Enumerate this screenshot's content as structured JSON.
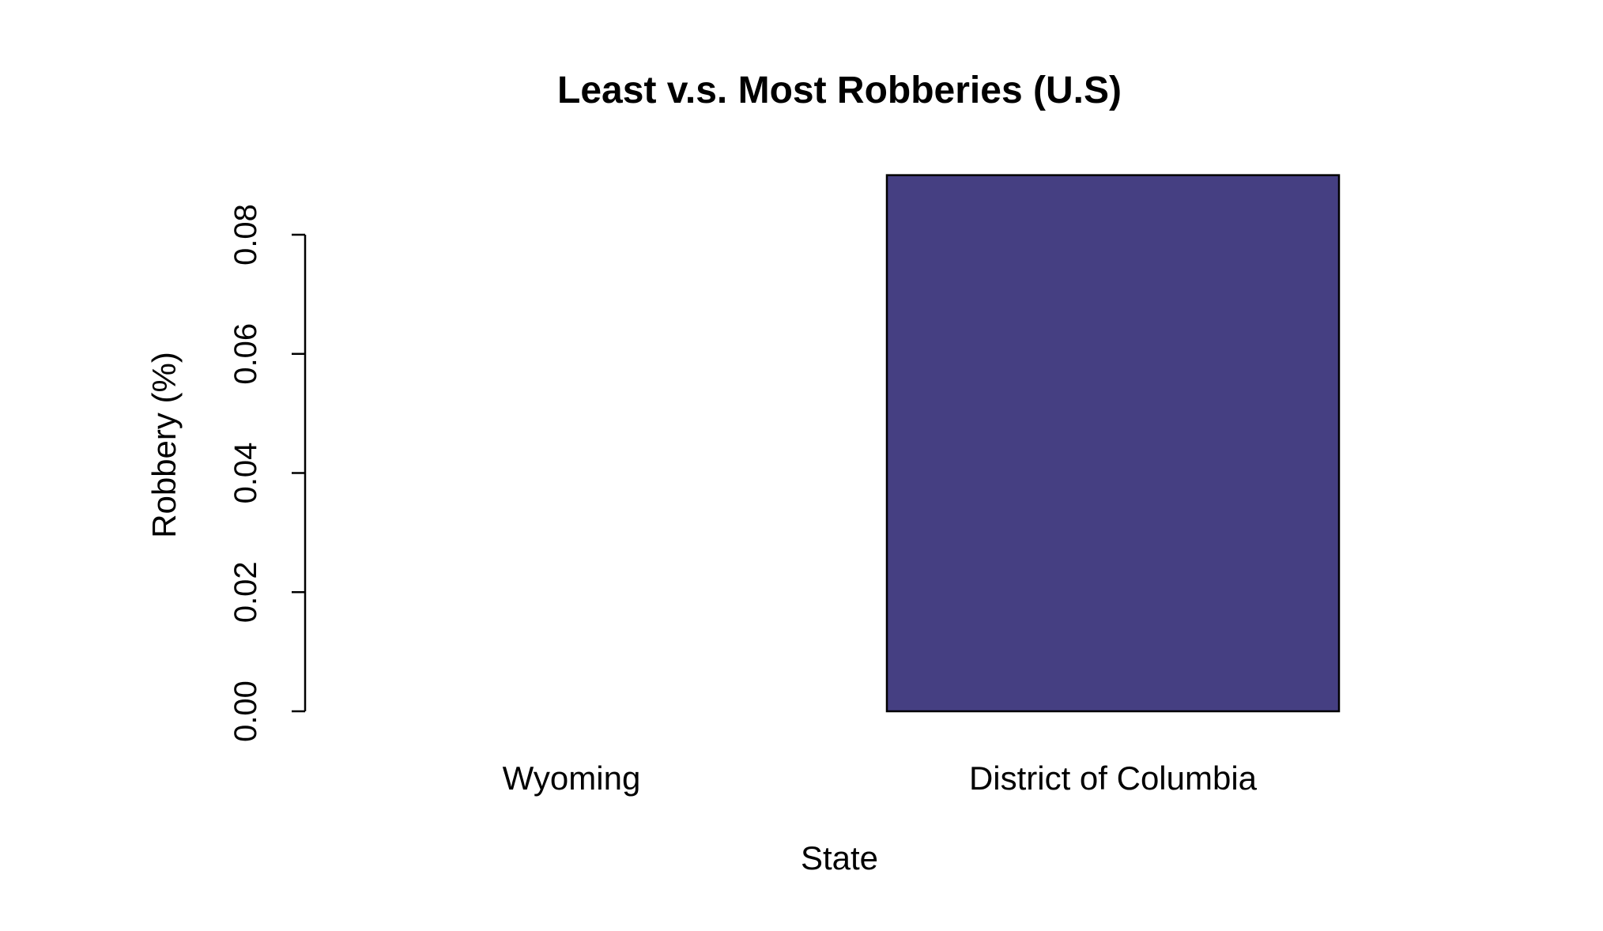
{
  "chart_data": {
    "type": "bar",
    "title": "Least v.s. Most Robberies (U.S)",
    "xlabel": "State",
    "ylabel": "Robbery (%)",
    "categories": [
      "Wyoming",
      "District of Columbia"
    ],
    "values": [
      0.0,
      0.09
    ],
    "ylim": [
      0,
      0.08
    ],
    "yticks": [
      "0.00",
      "0.02",
      "0.04",
      "0.06",
      "0.08"
    ],
    "bar_color": "#453f82",
    "grid": false,
    "legend": "none"
  }
}
